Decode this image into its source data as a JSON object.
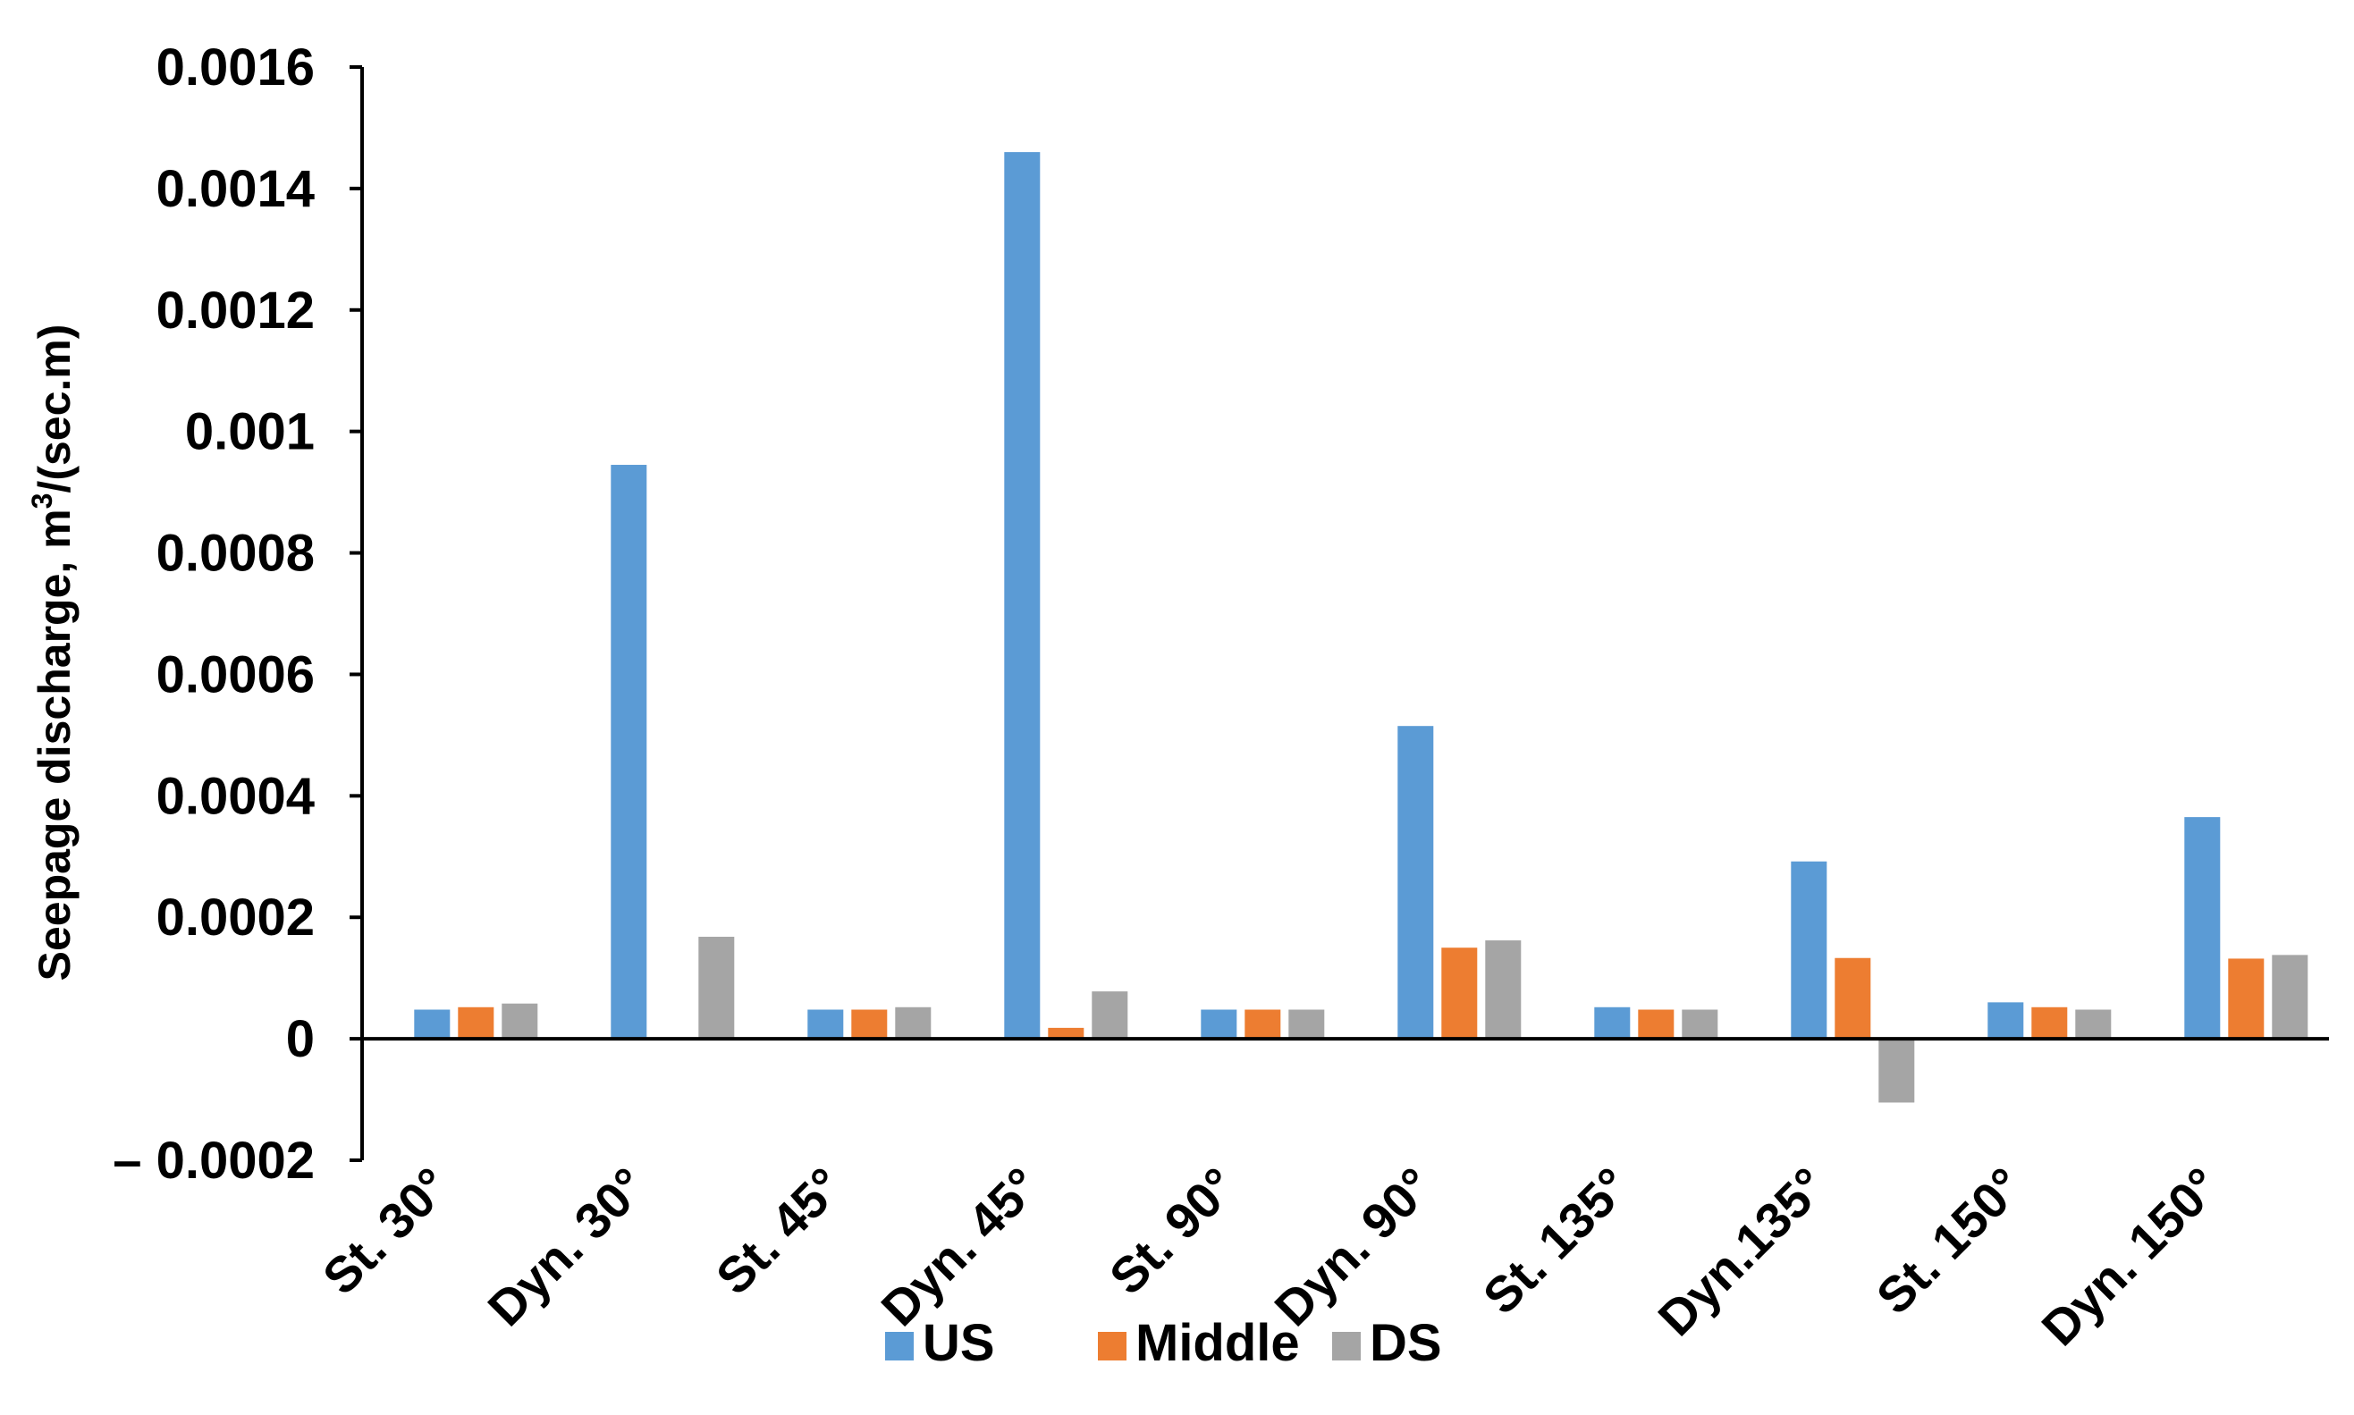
{
  "chart_data": {
    "type": "bar",
    "title": "",
    "xlabel": "",
    "ylabel": {
      "main": "Seepage discharge, m",
      "superscript": "3",
      "suffix": "/(sec.m)"
    },
    "ylim": [
      -0.0002,
      0.0016
    ],
    "yticks": [
      -0.0002,
      0,
      0.0002,
      0.0004,
      0.0006,
      0.0008,
      0.001,
      0.0012,
      0.0014,
      0.0016
    ],
    "ytick_labels": [
      "– 0.0002",
      "0",
      "0.0002",
      "0.0004",
      "0.0006",
      "0.0008",
      "0.001",
      "0.0012",
      "0.0014",
      "0.0016"
    ],
    "categories": [
      "St. 30°",
      "Dyn. 30°",
      "St. 45°",
      "Dyn. 45°",
      "St. 90°",
      "Dyn. 90°",
      "St. 135°",
      "Dyn.135°",
      "St. 150°",
      "Dyn. 150°"
    ],
    "series": [
      {
        "name": "US",
        "color": "#5B9BD5",
        "values": [
          4.8e-05,
          0.000945,
          4.8e-05,
          0.00146,
          4.8e-05,
          0.000515,
          5.2e-05,
          0.000292,
          6e-05,
          0.000365
        ]
      },
      {
        "name": "Middle",
        "color": "#ED7D31",
        "values": [
          5.2e-05,
          0.0,
          4.8e-05,
          1.8e-05,
          4.8e-05,
          0.00015,
          4.8e-05,
          0.000133,
          5.2e-05,
          0.000132
        ]
      },
      {
        "name": "DS",
        "color": "#A5A5A5",
        "values": [
          5.8e-05,
          0.000168,
          5.2e-05,
          7.8e-05,
          4.8e-05,
          0.000162,
          4.8e-05,
          -0.000105,
          4.8e-05,
          0.000138
        ]
      }
    ],
    "grid": false,
    "legend_position": "bottom"
  }
}
